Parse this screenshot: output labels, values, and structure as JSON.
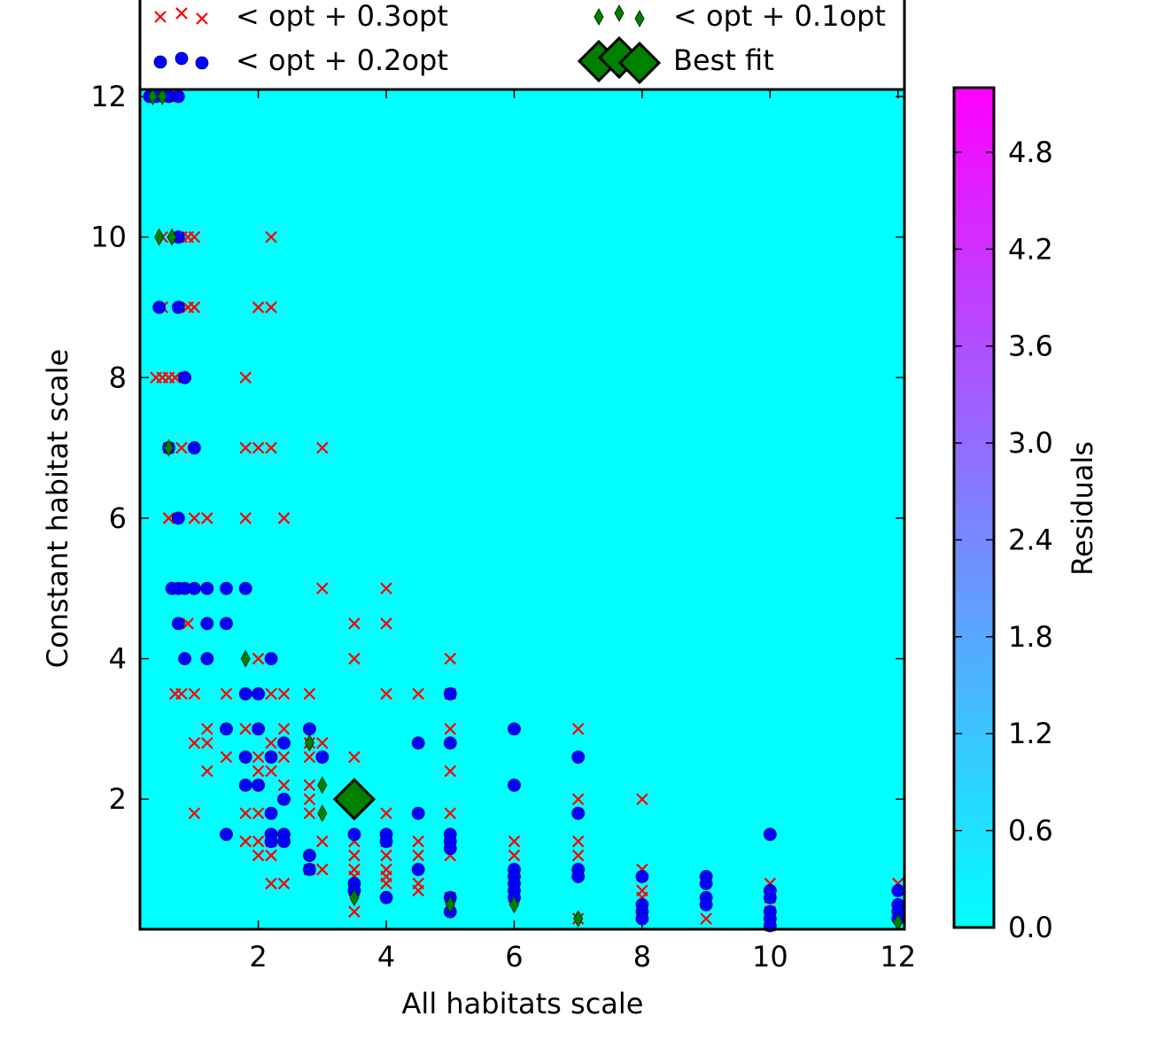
{
  "chart_data": {
    "type": "scatter",
    "title": "",
    "xlabel": "All habitats scale",
    "ylabel": "Constant habitat scale",
    "xlim": [
      0.15,
      12.1
    ],
    "ylim": [
      0.15,
      12.1
    ],
    "xticks": [
      2,
      4,
      6,
      8,
      10,
      12
    ],
    "yticks": [
      2,
      4,
      6,
      8,
      10,
      12
    ],
    "background_color": "#00ffff",
    "colorbar": {
      "label": "Residuals",
      "min": 0.0,
      "max": 5.2,
      "ticks": [
        "0.0",
        "0.6",
        "1.2",
        "1.8",
        "2.4",
        "3.0",
        "3.6",
        "4.2",
        "4.8"
      ],
      "colormap": "cool",
      "color_low": "#00ffff",
      "color_high": "#ff00ff"
    },
    "legend": {
      "placement": "top"
    },
    "series": [
      {
        "name": "< opt + 0.3opt",
        "marker": "x",
        "color": "#ff0000",
        "points": [
          [
            0.4,
            12
          ],
          [
            0.5,
            12
          ],
          [
            0.6,
            12
          ],
          [
            0.5,
            10
          ],
          [
            0.8,
            10
          ],
          [
            0.9,
            10
          ],
          [
            1.0,
            10
          ],
          [
            2.2,
            10
          ],
          [
            0.5,
            9
          ],
          [
            0.9,
            9
          ],
          [
            1.0,
            9
          ],
          [
            2.0,
            9
          ],
          [
            2.2,
            9
          ],
          [
            0.4,
            8
          ],
          [
            0.5,
            8
          ],
          [
            0.6,
            8
          ],
          [
            0.7,
            8
          ],
          [
            1.8,
            8
          ],
          [
            0.6,
            7
          ],
          [
            0.8,
            7
          ],
          [
            1.8,
            7
          ],
          [
            2.0,
            7
          ],
          [
            2.2,
            7
          ],
          [
            3.0,
            7
          ],
          [
            0.6,
            6
          ],
          [
            1.0,
            6
          ],
          [
            1.2,
            6
          ],
          [
            1.8,
            6
          ],
          [
            2.4,
            6
          ],
          [
            3.0,
            5
          ],
          [
            4.0,
            5
          ],
          [
            0.9,
            4.5
          ],
          [
            3.5,
            4.5
          ],
          [
            4.0,
            4.5
          ],
          [
            2.0,
            4
          ],
          [
            3.5,
            4
          ],
          [
            5.0,
            4
          ],
          [
            0.7,
            3.5
          ],
          [
            0.8,
            3.5
          ],
          [
            1.0,
            3.5
          ],
          [
            1.5,
            3.5
          ],
          [
            2.2,
            3.5
          ],
          [
            2.4,
            3.5
          ],
          [
            2.8,
            3.5
          ],
          [
            4.0,
            3.5
          ],
          [
            4.5,
            3.5
          ],
          [
            5.0,
            3.5
          ],
          [
            1.2,
            3
          ],
          [
            1.8,
            3
          ],
          [
            2.4,
            3
          ],
          [
            5.0,
            3
          ],
          [
            7.0,
            3
          ],
          [
            1.0,
            2.8
          ],
          [
            1.2,
            2.8
          ],
          [
            2.2,
            2.8
          ],
          [
            2.8,
            2.8
          ],
          [
            3.0,
            2.8
          ],
          [
            1.5,
            2.6
          ],
          [
            2.0,
            2.6
          ],
          [
            2.4,
            2.6
          ],
          [
            2.8,
            2.6
          ],
          [
            3.5,
            2.6
          ],
          [
            1.2,
            2.4
          ],
          [
            2.0,
            2.4
          ],
          [
            2.2,
            2.4
          ],
          [
            5.0,
            2.4
          ],
          [
            2.4,
            2.2
          ],
          [
            2.8,
            2.2
          ],
          [
            2.8,
            2
          ],
          [
            7.0,
            2
          ],
          [
            8.0,
            2
          ],
          [
            1.0,
            1.8
          ],
          [
            1.8,
            1.8
          ],
          [
            2.0,
            1.8
          ],
          [
            2.8,
            1.8
          ],
          [
            4.0,
            1.8
          ],
          [
            5.0,
            1.8
          ],
          [
            1.8,
            1.4
          ],
          [
            2.0,
            1.4
          ],
          [
            2.2,
            1.4
          ],
          [
            3.0,
            1.4
          ],
          [
            3.5,
            1.4
          ],
          [
            4.0,
            1.4
          ],
          [
            4.5,
            1.4
          ],
          [
            6.0,
            1.4
          ],
          [
            7.0,
            1.4
          ],
          [
            2.0,
            1.2
          ],
          [
            2.2,
            1.2
          ],
          [
            3.5,
            1.2
          ],
          [
            4.0,
            1.2
          ],
          [
            4.5,
            1.2
          ],
          [
            5.0,
            1.2
          ],
          [
            6.0,
            1.2
          ],
          [
            7.0,
            1.2
          ],
          [
            2.8,
            1.0
          ],
          [
            3.0,
            1.0
          ],
          [
            3.5,
            1.0
          ],
          [
            4.0,
            1.0
          ],
          [
            8.0,
            1.0
          ],
          [
            3.5,
            0.9
          ],
          [
            4.0,
            0.9
          ],
          [
            2.2,
            0.8
          ],
          [
            2.4,
            0.8
          ],
          [
            4.0,
            0.8
          ],
          [
            4.5,
            0.8
          ],
          [
            10.0,
            0.8
          ],
          [
            12.0,
            0.8
          ],
          [
            3.5,
            0.7
          ],
          [
            4.5,
            0.7
          ],
          [
            8.0,
            0.7
          ],
          [
            5.0,
            0.6
          ],
          [
            6.0,
            0.6
          ],
          [
            8.0,
            0.6
          ],
          [
            10.0,
            0.6
          ],
          [
            3.5,
            0.4
          ],
          [
            10.0,
            0.4
          ],
          [
            7.0,
            0.3
          ],
          [
            9.0,
            0.3
          ],
          [
            10.0,
            0.2
          ]
        ]
      },
      {
        "name": "< opt + 0.2opt",
        "marker": "circle",
        "color": "#0000ff",
        "points": [
          [
            0.3,
            12
          ],
          [
            0.4,
            12
          ],
          [
            0.6,
            12
          ],
          [
            0.75,
            12
          ],
          [
            0.75,
            10
          ],
          [
            0.45,
            9
          ],
          [
            0.75,
            9
          ],
          [
            0.85,
            8
          ],
          [
            0.6,
            7
          ],
          [
            1.0,
            7
          ],
          [
            0.75,
            6
          ],
          [
            0.65,
            5
          ],
          [
            0.75,
            5
          ],
          [
            0.85,
            5
          ],
          [
            1.0,
            5
          ],
          [
            1.2,
            5
          ],
          [
            1.5,
            5
          ],
          [
            1.8,
            5
          ],
          [
            0.75,
            4.5
          ],
          [
            1.2,
            4.5
          ],
          [
            1.5,
            4.5
          ],
          [
            0.85,
            4
          ],
          [
            1.2,
            4
          ],
          [
            2.2,
            4
          ],
          [
            1.8,
            3.5
          ],
          [
            2.0,
            3.5
          ],
          [
            5.0,
            3.5
          ],
          [
            1.5,
            3
          ],
          [
            2.0,
            3
          ],
          [
            2.8,
            3
          ],
          [
            6.0,
            3
          ],
          [
            2.4,
            2.8
          ],
          [
            4.5,
            2.8
          ],
          [
            5.0,
            2.8
          ],
          [
            1.8,
            2.6
          ],
          [
            2.2,
            2.6
          ],
          [
            3.0,
            2.6
          ],
          [
            7.0,
            2.6
          ],
          [
            1.8,
            2.2
          ],
          [
            2.0,
            2.2
          ],
          [
            6.0,
            2.2
          ],
          [
            2.4,
            2.0
          ],
          [
            2.2,
            1.8
          ],
          [
            4.5,
            1.8
          ],
          [
            7.0,
            1.8
          ],
          [
            1.5,
            1.5
          ],
          [
            2.2,
            1.5
          ],
          [
            2.4,
            1.5
          ],
          [
            3.5,
            1.5
          ],
          [
            4.0,
            1.5
          ],
          [
            5.0,
            1.5
          ],
          [
            10.0,
            1.5
          ],
          [
            2.2,
            1.4
          ],
          [
            2.4,
            1.4
          ],
          [
            4.0,
            1.4
          ],
          [
            5.0,
            1.4
          ],
          [
            2.8,
            1.2
          ],
          [
            5.0,
            1.3
          ],
          [
            2.8,
            1.0
          ],
          [
            4.5,
            1.0
          ],
          [
            6.0,
            1.0
          ],
          [
            7.0,
            1.0
          ],
          [
            6.0,
            0.9
          ],
          [
            7.0,
            0.9
          ],
          [
            8.0,
            0.9
          ],
          [
            9.0,
            0.9
          ],
          [
            3.5,
            0.8
          ],
          [
            6.0,
            0.8
          ],
          [
            9.0,
            0.8
          ],
          [
            3.5,
            0.7
          ],
          [
            6.0,
            0.7
          ],
          [
            10.0,
            0.7
          ],
          [
            12.0,
            0.7
          ],
          [
            4.0,
            0.6
          ],
          [
            5.0,
            0.6
          ],
          [
            6.0,
            0.6
          ],
          [
            9.0,
            0.6
          ],
          [
            10.0,
            0.6
          ],
          [
            8.0,
            0.5
          ],
          [
            9.0,
            0.5
          ],
          [
            12.0,
            0.5
          ],
          [
            5.0,
            0.4
          ],
          [
            8.0,
            0.4
          ],
          [
            10.0,
            0.4
          ],
          [
            12.0,
            0.4
          ],
          [
            8.0,
            0.3
          ],
          [
            10.0,
            0.3
          ],
          [
            12.0,
            0.3
          ],
          [
            10.0,
            0.2
          ]
        ]
      },
      {
        "name": "< opt + 0.1opt",
        "marker": "thin-diamond",
        "color": "#008000",
        "points": [
          [
            0.35,
            12
          ],
          [
            0.5,
            12
          ],
          [
            0.45,
            10
          ],
          [
            0.65,
            10
          ],
          [
            0.6,
            7
          ],
          [
            1.8,
            4
          ],
          [
            2.8,
            2.8
          ],
          [
            3.0,
            2.2
          ],
          [
            3.0,
            1.8
          ],
          [
            3.5,
            0.6
          ],
          [
            5.0,
            0.5
          ],
          [
            6.0,
            0.5
          ],
          [
            7.0,
            0.3
          ],
          [
            12.0,
            0.25
          ]
        ]
      },
      {
        "name": "Best fit",
        "marker": "diamond-large",
        "color": "#008000",
        "points": [
          [
            3.5,
            2.0
          ]
        ]
      }
    ]
  }
}
